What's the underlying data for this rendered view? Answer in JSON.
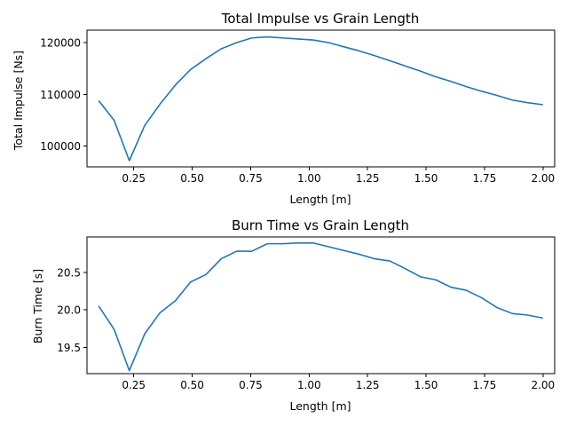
{
  "chart_data": [
    {
      "type": "line",
      "title": "Total Impulse vs Grain Length",
      "xlabel": "Length [m]",
      "ylabel": "Total Impulse [Ns]",
      "xlim": [
        0.05,
        2.05
      ],
      "ylim": [
        96000,
        122400
      ],
      "grid": false,
      "color": "#1f77b4",
      "xticks": [
        0.25,
        0.5,
        0.75,
        1.0,
        1.25,
        1.5,
        1.75,
        2.0
      ],
      "xtick_labels": [
        "0.25",
        "0.50",
        "0.75",
        "1.00",
        "1.25",
        "1.50",
        "1.75",
        "2.00"
      ],
      "yticks": [
        100000,
        110000,
        120000
      ],
      "ytick_labels": [
        "100000",
        "110000",
        "120000"
      ],
      "x": [
        0.1,
        0.166,
        0.231,
        0.297,
        0.362,
        0.428,
        0.493,
        0.559,
        0.624,
        0.69,
        0.755,
        0.821,
        0.886,
        0.952,
        1.017,
        1.083,
        1.148,
        1.214,
        1.279,
        1.345,
        1.41,
        1.476,
        1.541,
        1.607,
        1.672,
        1.738,
        1.803,
        1.869,
        1.934,
        2.0
      ],
      "series": [
        {
          "values": [
            108800,
            105000,
            97200,
            104000,
            108100,
            111800,
            114800,
            116900,
            118800,
            120000,
            120900,
            121100,
            120900,
            120700,
            120500,
            120000,
            119200,
            118400,
            117500,
            116500,
            115500,
            114500,
            113400,
            112500,
            111500,
            110600,
            109800,
            108900,
            108400,
            108000
          ]
        }
      ]
    },
    {
      "type": "line",
      "title": "Burn Time vs Grain Length",
      "xlabel": "Length [m]",
      "ylabel": "Burn Time [s]",
      "xlim": [
        0.05,
        2.05
      ],
      "ylim": [
        19.15,
        20.97
      ],
      "grid": false,
      "color": "#1f77b4",
      "xticks": [
        0.25,
        0.5,
        0.75,
        1.0,
        1.25,
        1.5,
        1.75,
        2.0
      ],
      "xtick_labels": [
        "0.25",
        "0.50",
        "0.75",
        "1.00",
        "1.25",
        "1.50",
        "1.75",
        "2.00"
      ],
      "yticks": [
        19.5,
        20.0,
        20.5
      ],
      "ytick_labels": [
        "19.5",
        "20.0",
        "20.5"
      ],
      "x": [
        0.1,
        0.166,
        0.231,
        0.297,
        0.362,
        0.428,
        0.493,
        0.559,
        0.624,
        0.69,
        0.755,
        0.821,
        0.886,
        0.952,
        1.017,
        1.083,
        1.148,
        1.214,
        1.279,
        1.345,
        1.41,
        1.476,
        1.541,
        1.607,
        1.672,
        1.738,
        1.803,
        1.869,
        1.934,
        2.0
      ],
      "series": [
        {
          "values": [
            20.05,
            19.74,
            19.19,
            19.68,
            19.96,
            20.12,
            20.37,
            20.47,
            20.68,
            20.78,
            20.78,
            20.88,
            20.88,
            20.89,
            20.89,
            20.84,
            20.79,
            20.74,
            20.68,
            20.65,
            20.55,
            20.44,
            20.4,
            20.3,
            20.26,
            20.16,
            20.03,
            19.95,
            19.93,
            19.89
          ]
        }
      ]
    }
  ]
}
